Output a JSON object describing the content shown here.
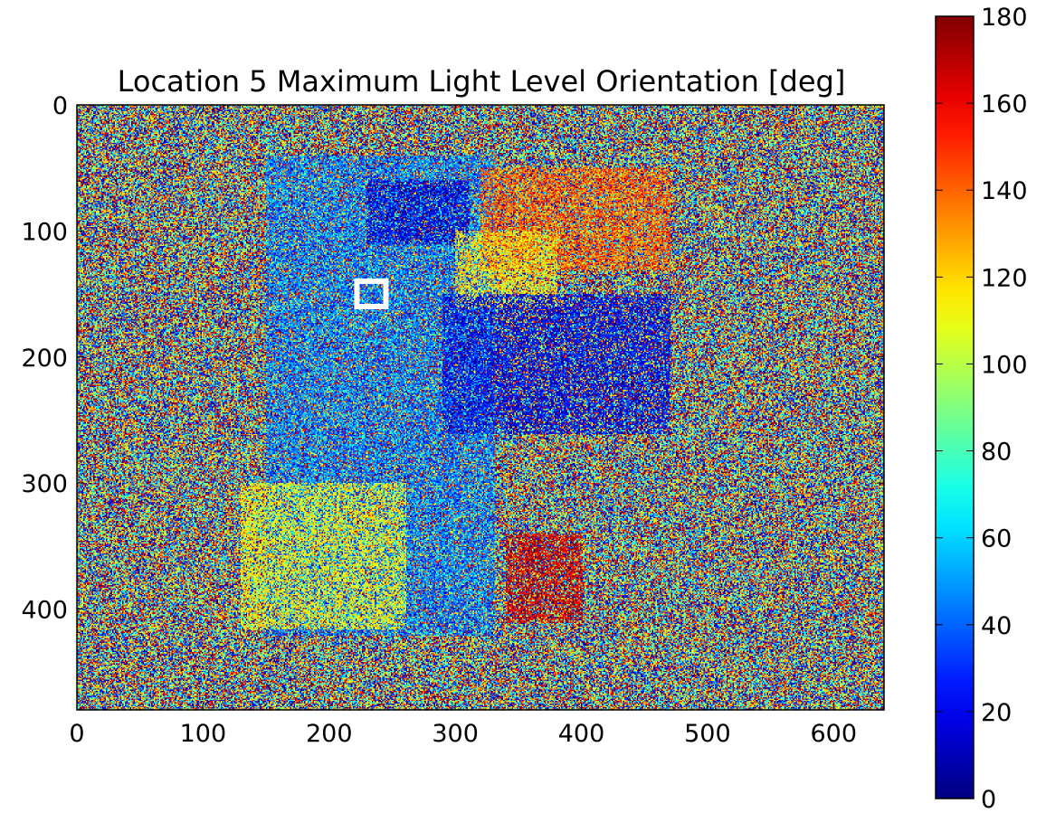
{
  "chart_data": {
    "type": "heatmap",
    "title": "Location 5 Maximum Light Level Orientation [deg]",
    "xlabel": "",
    "ylabel": "",
    "xlim": [
      0,
      640
    ],
    "ylim": [
      480,
      0
    ],
    "x_ticks": [
      0,
      100,
      200,
      300,
      400,
      500,
      600
    ],
    "y_ticks": [
      0,
      100,
      200,
      300,
      400
    ],
    "x_tick_labels": [
      "0",
      "100",
      "200",
      "300",
      "400",
      "500",
      "600"
    ],
    "y_tick_labels": [
      "0",
      "100",
      "200",
      "300",
      "400"
    ],
    "colormap": "jet",
    "colorbar": {
      "range": [
        0,
        180
      ],
      "ticks": [
        0,
        20,
        40,
        60,
        80,
        100,
        120,
        140,
        160,
        180
      ],
      "tick_labels": [
        "0",
        "20",
        "40",
        "60",
        "80",
        "100",
        "120",
        "140",
        "160",
        "180"
      ]
    },
    "background": "uniform random noise over 0-180",
    "regions": [
      {
        "description": "blue face area",
        "x": [
          150,
          330
        ],
        "y": [
          40,
          420
        ],
        "value": 45
      },
      {
        "description": "dark blue area top",
        "x": [
          230,
          310
        ],
        "y": [
          60,
          110
        ],
        "value": 15
      },
      {
        "description": "orange area top right",
        "x": [
          320,
          470
        ],
        "y": [
          50,
          130
        ],
        "value": 140
      },
      {
        "description": "yellow region right",
        "x": [
          300,
          380
        ],
        "y": [
          100,
          160
        ],
        "value": 115
      },
      {
        "description": "dark blue middle",
        "x": [
          290,
          470
        ],
        "y": [
          150,
          260
        ],
        "value": 20
      },
      {
        "description": "yellow lower left",
        "x": [
          130,
          260
        ],
        "y": [
          300,
          415
        ],
        "value": 110
      },
      {
        "description": "red lower middle",
        "x": [
          340,
          400
        ],
        "y": [
          340,
          410
        ],
        "value": 165
      }
    ],
    "annotations": [
      {
        "type": "rectangle",
        "x": [
          222,
          245
        ],
        "y": [
          140,
          160
        ],
        "color": "#ffffff"
      }
    ]
  }
}
